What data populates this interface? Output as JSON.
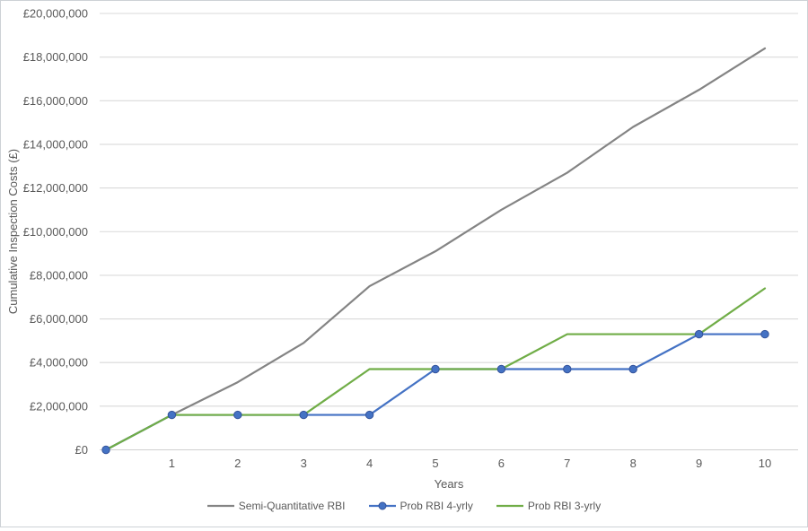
{
  "chart_data": {
    "type": "line",
    "title": "",
    "xlabel": "Years",
    "ylabel": "Cumulative Inspection Costs (£)",
    "ylim": [
      0,
      20000000
    ],
    "ytick_step": 2000000,
    "grid": true,
    "legend_position": "bottom",
    "y_tick_labels": [
      "£0",
      "£2,000,000",
      "£4,000,000",
      "£6,000,000",
      "£8,000,000",
      "£10,000,000",
      "£12,000,000",
      "£14,000,000",
      "£16,000,000",
      "£18,000,000",
      "£20,000,000"
    ],
    "x_tick_labels": [
      "1",
      "2",
      "3",
      "4",
      "5",
      "6",
      "7",
      "8",
      "9",
      "10"
    ],
    "x": [
      0,
      1,
      2,
      3,
      4,
      5,
      6,
      7,
      8,
      9,
      10
    ],
    "series": [
      {
        "name": "Semi-Quantitative RBI",
        "color": "#848484",
        "marker": false,
        "values": [
          0,
          1600000,
          3100000,
          4900000,
          7500000,
          9100000,
          11000000,
          12700000,
          14800000,
          16500000,
          18400000
        ]
      },
      {
        "name": "Prob RBI 4-yrly",
        "color": "#4472C4",
        "marker": true,
        "marker_stroke": "#35549b",
        "values": [
          0,
          1600000,
          1600000,
          1600000,
          1600000,
          3700000,
          3700000,
          3700000,
          3700000,
          5300000,
          5300000
        ]
      },
      {
        "name": "Prob RBI 3-yrly",
        "color": "#70AD47",
        "marker": false,
        "values": [
          0,
          1600000,
          1600000,
          1600000,
          3700000,
          3700000,
          3700000,
          5300000,
          5300000,
          5300000,
          7400000
        ]
      }
    ],
    "colors": {
      "gridline": "#d9d9d9",
      "zero_line": "#d0d0d0",
      "tick_text": "#595959"
    }
  }
}
